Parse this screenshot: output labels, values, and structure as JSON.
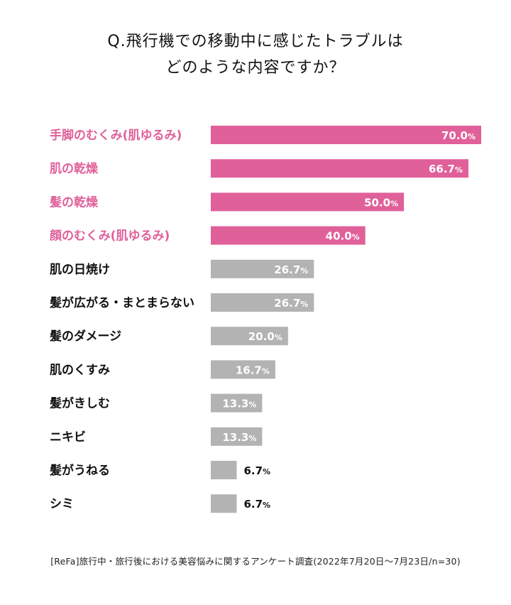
{
  "title": {
    "line1": "Q.飛行機での移動中に感じたトラブルは",
    "line2": "どのような内容ですか？"
  },
  "colors": {
    "highlight": "#e0609a",
    "normal": "#b3b3b3",
    "label_highlight": "#e0609a",
    "label_normal": "#111111"
  },
  "chart_data": {
    "type": "bar",
    "orientation": "horizontal",
    "categories": [
      "手脚のむくみ(肌ゆるみ)",
      "肌の乾燥",
      "髪の乾燥",
      "顔のむくみ(肌ゆるみ)",
      "肌の日焼け",
      "髪が広がる・まとまらない",
      "髪のダメージ",
      "肌のくすみ",
      "髪がきしむ",
      "ニキビ",
      "髪がうねる",
      "シミ"
    ],
    "values": [
      70.0,
      66.7,
      50.0,
      40.0,
      26.7,
      26.7,
      20.0,
      16.7,
      13.3,
      13.3,
      6.7,
      6.7
    ],
    "value_labels": [
      "70.0%",
      "66.7%",
      "50.0%",
      "40.0%",
      "26.7%",
      "26.7%",
      "20.0%",
      "16.7%",
      "13.3%",
      "13.3%",
      "6.7%",
      "6.7%"
    ],
    "highlighted": [
      true,
      true,
      true,
      true,
      false,
      false,
      false,
      false,
      false,
      false,
      false,
      false
    ],
    "xlim": [
      0,
      70
    ]
  },
  "footer": "[ReFa]旅行中・旅行後における美容悩みに関するアンケート調査(2022年7月20日〜7月23日/n=30)"
}
